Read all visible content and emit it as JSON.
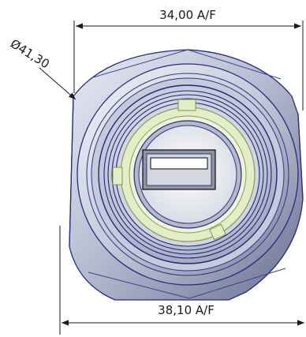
{
  "dimensions": {
    "top": "34,00 A/F",
    "bottom": "38,10 A/F",
    "diameter": "Ø41,30"
  },
  "colors": {
    "line": "#1a1a1a",
    "hex_light": "#dde1ec",
    "hex_mid": "#a9b0c6",
    "hex_dark": "#5c6485",
    "steel_light": "#eef0f5",
    "steel_dark": "#7c839e",
    "edge_blue": "#232c80",
    "ring_green": "#e4edc8",
    "ring_green_edge": "#8a9c52",
    "port_gray": "#c9ccd4"
  }
}
